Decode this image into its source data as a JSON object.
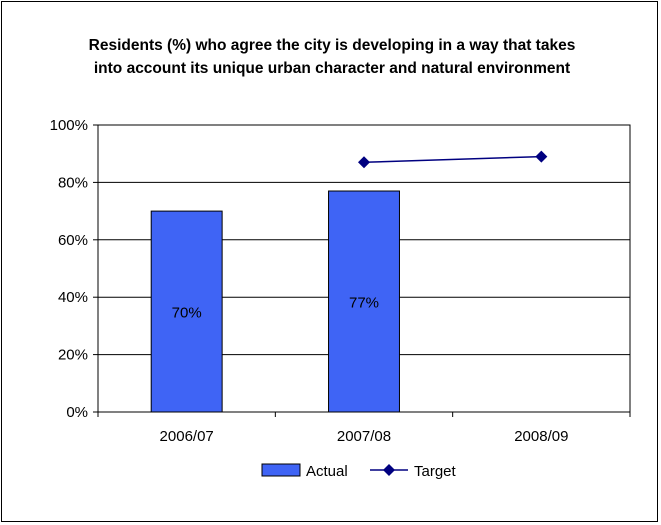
{
  "chart_data": {
    "type": "bar",
    "title": "Residents (%) who agree the city is developing in a way that takes into account its unique urban character and natural environment",
    "categories": [
      "2006/07",
      "2007/08",
      "2008/09"
    ],
    "series": [
      {
        "name": "Actual",
        "type": "bar",
        "values": [
          70,
          77,
          null
        ],
        "labels": [
          "70%",
          "77%",
          ""
        ],
        "color": "#3f64f5"
      },
      {
        "name": "Target",
        "type": "line",
        "values": [
          null,
          87,
          89
        ],
        "color": "#000080"
      }
    ],
    "y_ticks": [
      "0%",
      "20%",
      "40%",
      "60%",
      "80%",
      "100%"
    ],
    "ylim": [
      0,
      100
    ],
    "grid": true,
    "legend": "bottom"
  }
}
